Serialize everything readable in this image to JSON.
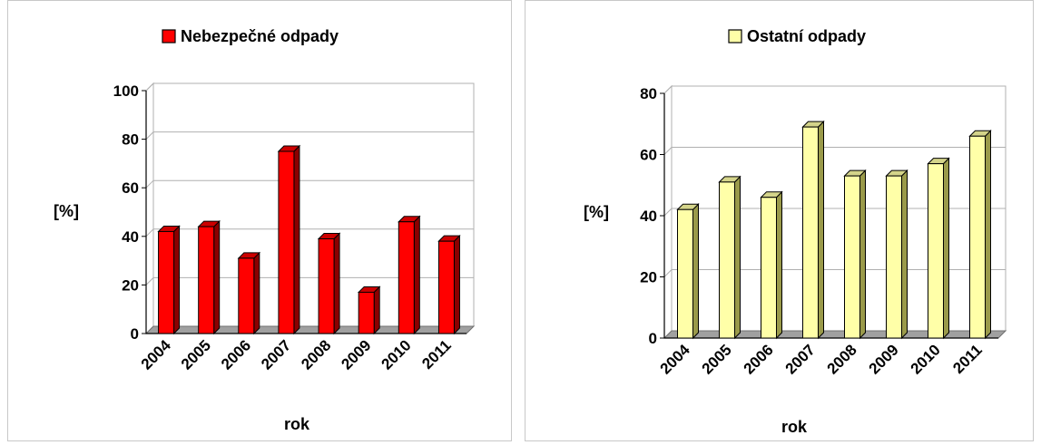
{
  "chart_data": [
    {
      "type": "bar",
      "title": "",
      "legend": [
        "Nebezpečné odpady"
      ],
      "legend_position": "top-center",
      "categories": [
        "2004",
        "2005",
        "2006",
        "2007",
        "2008",
        "2009",
        "2010",
        "2011"
      ],
      "series": [
        {
          "name": "Nebezpečné odpady",
          "values": [
            42,
            44,
            31,
            75,
            39,
            17,
            46,
            38
          ]
        }
      ],
      "xlabel": "rok",
      "ylabel": "[%]",
      "ylim": [
        0,
        100
      ],
      "yticks": [
        "0",
        "20",
        "40",
        "60",
        "80",
        "100"
      ],
      "grid": true,
      "colors": {
        "fill": "#ff0000",
        "side": "#8b0000",
        "top": "#cc0000",
        "edge": "#000000"
      }
    },
    {
      "type": "bar",
      "title": "",
      "legend": [
        "Ostatní odpady"
      ],
      "legend_position": "top-center",
      "categories": [
        "2004",
        "2005",
        "2006",
        "2007",
        "2008",
        "2009",
        "2010",
        "2011"
      ],
      "series": [
        {
          "name": "Ostatní odpady",
          "values": [
            42,
            51,
            46,
            69,
            53,
            53,
            57,
            66
          ]
        }
      ],
      "xlabel": "rok",
      "ylabel": "[%]",
      "ylim": [
        0,
        80
      ],
      "yticks": [
        "0",
        "20",
        "40",
        "60",
        "80"
      ],
      "grid": true,
      "colors": {
        "fill": "#ffffa8",
        "side": "#9a9a4a",
        "top": "#d4d48a",
        "edge": "#000000"
      }
    }
  ]
}
